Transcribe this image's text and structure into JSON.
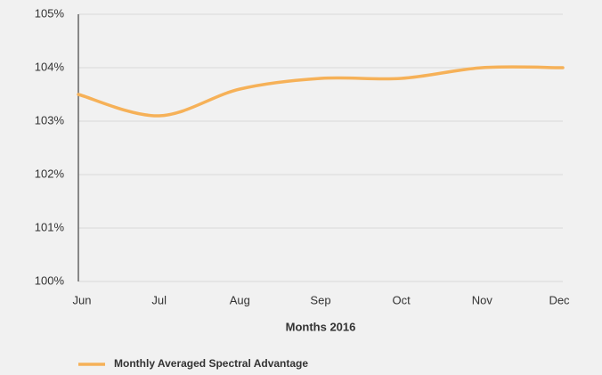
{
  "chart_data": {
    "type": "line",
    "xlabel": "Months 2016",
    "categories": [
      "Jun",
      "Jul",
      "Aug",
      "Sep",
      "Oct",
      "Nov",
      "Dec"
    ],
    "series": [
      {
        "name": "Monthly Averaged Spectral Advantage",
        "color": "#f6b158",
        "values": [
          103.5,
          103.1,
          103.6,
          103.8,
          103.8,
          104.0,
          104.0
        ]
      }
    ],
    "ylim": [
      100,
      105
    ],
    "yticks": [
      {
        "value": 100,
        "label": "100%"
      },
      {
        "value": 101,
        "label": "101%"
      },
      {
        "value": 102,
        "label": "102%"
      },
      {
        "value": 103,
        "label": "103%"
      },
      {
        "value": 104,
        "label": "104%"
      },
      {
        "value": 105,
        "label": "105%"
      }
    ],
    "grid": true
  }
}
